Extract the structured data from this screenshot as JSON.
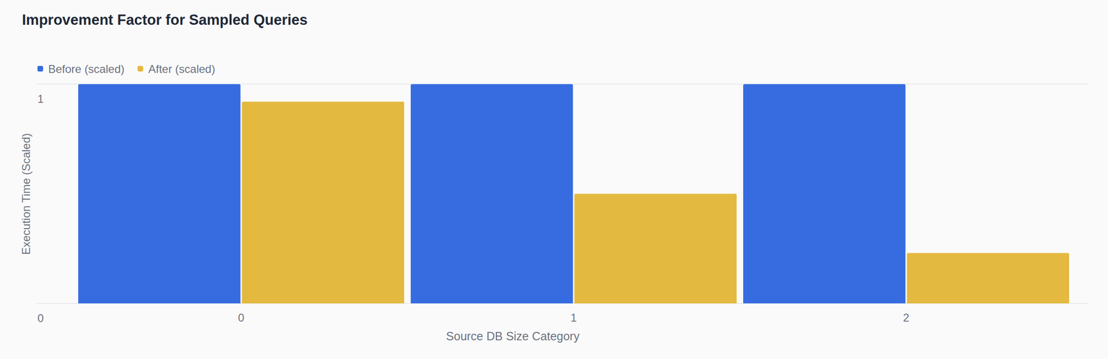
{
  "chart_data": {
    "type": "bar",
    "title": "Improvement Factor for Sampled Queries",
    "x_label": "Source DB Size Category",
    "y_label": "Execution Time (Scaled)",
    "categories": [
      "0",
      "1",
      "2"
    ],
    "series": [
      {
        "name": "Before (scaled)",
        "color": "#366ce0",
        "values": [
          1,
          1,
          1
        ]
      },
      {
        "name": "After (scaled)",
        "color": "#e3b940",
        "values": [
          0.92,
          0.5,
          0.23
        ]
      }
    ],
    "ylim": [
      0,
      1
    ],
    "yticks": [
      0,
      1
    ],
    "grid": true,
    "legend": "top-left"
  }
}
